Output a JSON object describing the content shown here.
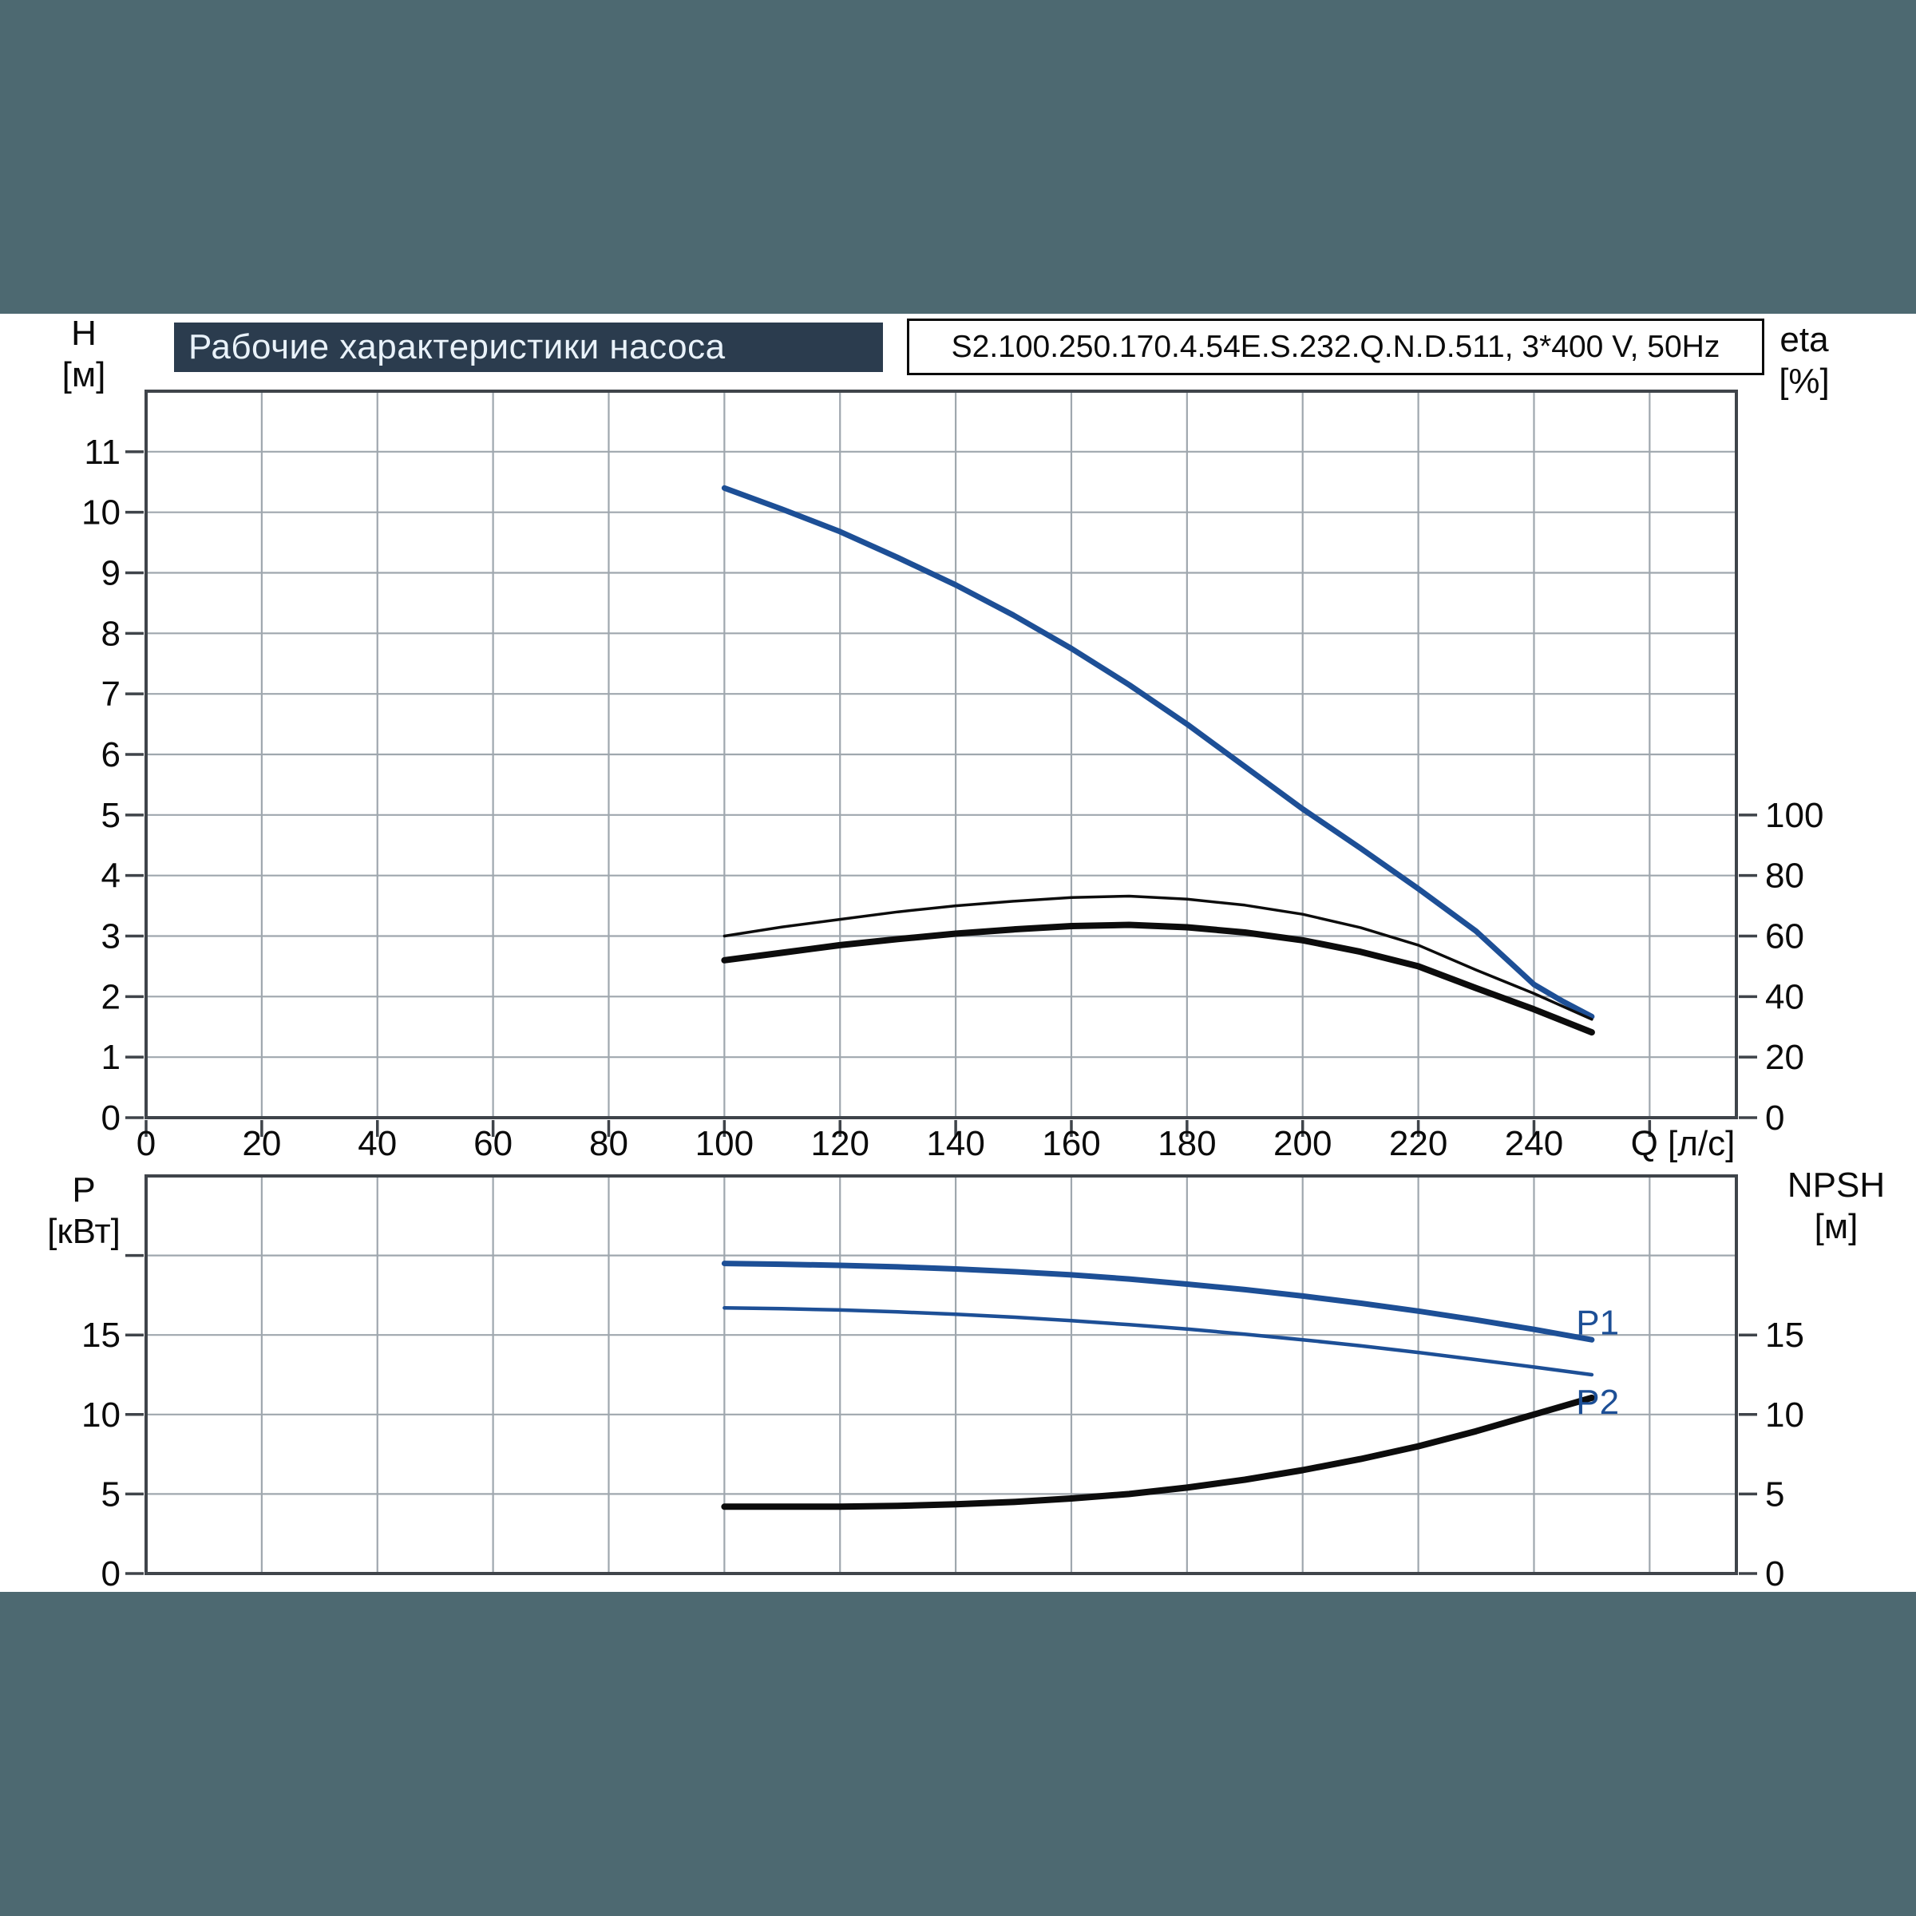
{
  "header": {
    "title": "Рабочие характеристики насоса",
    "pump_model": "S2.100.250.170.4.54E.S.232.Q.N.D.511, 3*400 V, 50Hz"
  },
  "colors": {
    "background": "#4d6971",
    "panel": "#ffffff",
    "title_bg": "#2b3c4e",
    "title_text": "#e9f2fa",
    "grid": "#9fa7ae",
    "axis": "#3f444a",
    "text": "#0b0b0b",
    "curve_blue": "#1d4f96",
    "curve_black": "#0c0c0c"
  },
  "chart_data": [
    {
      "type": "line",
      "xlabel": "Q [л/с]",
      "xlim": [
        0,
        275
      ],
      "x_gridlines": [
        20,
        40,
        60,
        80,
        100,
        120,
        140,
        160,
        180,
        200,
        220,
        240,
        260
      ],
      "x_tick_marks": [
        0,
        20,
        40,
        60,
        80,
        100,
        120,
        140,
        160,
        180,
        200,
        220,
        240,
        260
      ],
      "x_tick_labels": [
        0,
        20,
        40,
        60,
        80,
        100,
        120,
        140,
        160,
        180,
        200,
        220,
        240
      ],
      "left_axis": {
        "title": [
          "H",
          "[м]"
        ],
        "lim": [
          0,
          12
        ],
        "gridlines": [
          1,
          2,
          3,
          4,
          5,
          6,
          7,
          8,
          9,
          10,
          11
        ],
        "tick_labels": [
          0,
          1,
          2,
          3,
          4,
          5,
          6,
          7,
          8,
          9,
          10,
          11
        ]
      },
      "right_axis": {
        "title": [
          "eta",
          "[%]"
        ],
        "lim": [
          0,
          240
        ],
        "tick_labels": [
          0,
          20,
          40,
          60,
          80,
          100
        ]
      },
      "series": [
        {
          "name": "head-curve",
          "axis": "left",
          "color": "#1d4f96",
          "width": 7,
          "points": [
            [
              100,
              10.4
            ],
            [
              110,
              10.05
            ],
            [
              120,
              9.68
            ],
            [
              130,
              9.25
            ],
            [
              140,
              8.8
            ],
            [
              150,
              8.3
            ],
            [
              160,
              7.75
            ],
            [
              170,
              7.15
            ],
            [
              180,
              6.5
            ],
            [
              190,
              5.8
            ],
            [
              200,
              5.1
            ],
            [
              210,
              4.45
            ],
            [
              220,
              3.78
            ],
            [
              230,
              3.08
            ],
            [
              240,
              2.2
            ],
            [
              245,
              1.92
            ],
            [
              250,
              1.67
            ]
          ]
        },
        {
          "name": "eta-pump-curve",
          "axis": "right",
          "color": "#0c0c0c",
          "width": 3.5,
          "points": [
            [
              100,
              60
            ],
            [
              110,
              63
            ],
            [
              120,
              65.5
            ],
            [
              130,
              68
            ],
            [
              140,
              70
            ],
            [
              150,
              71.5
            ],
            [
              160,
              72.7
            ],
            [
              170,
              73.2
            ],
            [
              180,
              72.2
            ],
            [
              190,
              70.2
            ],
            [
              200,
              67.2
            ],
            [
              210,
              62.8
            ],
            [
              220,
              57
            ],
            [
              230,
              48.8
            ],
            [
              240,
              41
            ],
            [
              250,
              32.5
            ]
          ]
        },
        {
          "name": "eta-total-curve",
          "axis": "right",
          "color": "#0c0c0c",
          "width": 8,
          "points": [
            [
              100,
              52
            ],
            [
              110,
              54.5
            ],
            [
              120,
              57
            ],
            [
              130,
              59
            ],
            [
              140,
              60.8
            ],
            [
              150,
              62.2
            ],
            [
              160,
              63.3
            ],
            [
              170,
              63.7
            ],
            [
              180,
              62.9
            ],
            [
              190,
              61.2
            ],
            [
              200,
              58.6
            ],
            [
              210,
              54.8
            ],
            [
              220,
              50
            ],
            [
              230,
              42.8
            ],
            [
              240,
              35.8
            ],
            [
              250,
              28.2
            ]
          ]
        }
      ],
      "labels": []
    },
    {
      "type": "line",
      "xlabel": "",
      "xlim": [
        0,
        275
      ],
      "x_gridlines": [
        20,
        40,
        60,
        80,
        100,
        120,
        140,
        160,
        180,
        200,
        220,
        240,
        260
      ],
      "x_tick_marks": [],
      "x_tick_labels": [],
      "left_axis": {
        "title": [
          "P",
          "[кВт]"
        ],
        "lim": [
          0,
          25
        ],
        "gridlines": [
          5,
          10,
          15,
          20
        ],
        "tick_labels": [
          0,
          5,
          10,
          15
        ],
        "marks": [
          0,
          5,
          10,
          15,
          20
        ]
      },
      "right_axis": {
        "title": [
          "NPSH",
          "[м]"
        ],
        "lim": [
          0,
          25
        ],
        "tick_labels": [
          0,
          5,
          10,
          15
        ]
      },
      "series": [
        {
          "name": "p1-curve",
          "axis": "left",
          "color": "#1d4f96",
          "width": 7,
          "points": [
            [
              100,
              19.5
            ],
            [
              110,
              19.45
            ],
            [
              120,
              19.38
            ],
            [
              130,
              19.28
            ],
            [
              140,
              19.15
            ],
            [
              150,
              18.98
            ],
            [
              160,
              18.78
            ],
            [
              170,
              18.52
            ],
            [
              180,
              18.2
            ],
            [
              190,
              17.85
            ],
            [
              200,
              17.45
            ],
            [
              210,
              17.0
            ],
            [
              220,
              16.5
            ],
            [
              230,
              15.95
            ],
            [
              240,
              15.35
            ],
            [
              250,
              14.7
            ]
          ]
        },
        {
          "name": "p2-curve",
          "axis": "left",
          "color": "#1d4f96",
          "width": 4.5,
          "points": [
            [
              100,
              16.7
            ],
            [
              110,
              16.65
            ],
            [
              120,
              16.57
            ],
            [
              130,
              16.45
            ],
            [
              140,
              16.3
            ],
            [
              150,
              16.12
            ],
            [
              160,
              15.9
            ],
            [
              170,
              15.65
            ],
            [
              180,
              15.37
            ],
            [
              190,
              15.05
            ],
            [
              200,
              14.7
            ],
            [
              210,
              14.32
            ],
            [
              220,
              13.9
            ],
            [
              230,
              13.45
            ],
            [
              240,
              12.98
            ],
            [
              250,
              12.5
            ]
          ]
        },
        {
          "name": "npsh-curve",
          "axis": "left",
          "color": "#0c0c0c",
          "width": 8,
          "points": [
            [
              100,
              4.2
            ],
            [
              110,
              4.2
            ],
            [
              120,
              4.2
            ],
            [
              130,
              4.25
            ],
            [
              140,
              4.35
            ],
            [
              150,
              4.5
            ],
            [
              160,
              4.72
            ],
            [
              170,
              5.0
            ],
            [
              180,
              5.4
            ],
            [
              190,
              5.9
            ],
            [
              200,
              6.5
            ],
            [
              210,
              7.2
            ],
            [
              220,
              8.0
            ],
            [
              230,
              8.95
            ],
            [
              240,
              10.0
            ],
            [
              250,
              11.05
            ]
          ]
        }
      ],
      "labels": [
        {
          "text": "P1",
          "x": 251,
          "v": 15.8,
          "color": "#1d4f96"
        },
        {
          "text": "P2",
          "x": 251,
          "v": 10.8,
          "color": "#1d4f96"
        }
      ]
    }
  ]
}
